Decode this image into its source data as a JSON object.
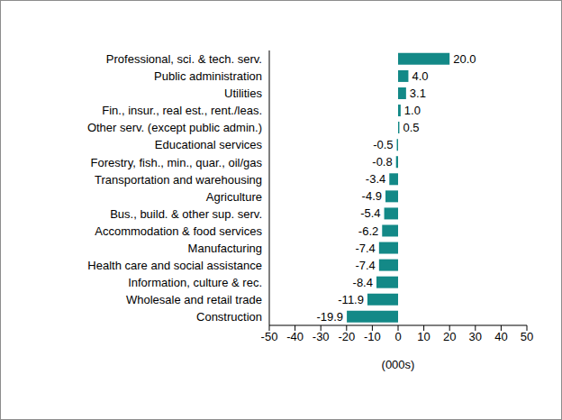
{
  "chart_data": {
    "type": "bar",
    "orientation": "horizontal",
    "categories": [
      "Professional, sci. & tech. serv.",
      "Public administration",
      "Utilities",
      "Fin., insur., real est., rent./leas.",
      "Other serv. (except public admin.)",
      "Educational services",
      "Forestry, fish., min., quar., oil/gas",
      "Transportation and warehousing",
      "Agriculture",
      "Bus., build. & other sup. serv.",
      "Accommodation & food services",
      "Manufacturing",
      "Health care and social assistance",
      "Information, culture & rec.",
      "Wholesale and retail trade",
      "Construction"
    ],
    "values": [
      20.0,
      4.0,
      3.1,
      1.0,
      0.5,
      -0.5,
      -0.8,
      -3.4,
      -4.9,
      -5.4,
      -6.2,
      -7.4,
      -7.4,
      -8.4,
      -11.9,
      -19.9
    ],
    "value_labels": [
      "20.0",
      "4.0",
      "3.1",
      "1.0",
      "0.5",
      "-0.5",
      "-0.8",
      "-3.4",
      "-4.9",
      "-5.4",
      "-6.2",
      "-7.4",
      "-7.4",
      "-8.4",
      "-11.9",
      "-19.9"
    ],
    "color": "#138987",
    "data_labels": true,
    "xlabel": "(000s)",
    "xlim": [
      -50,
      50
    ],
    "xticks": [
      -50,
      -40,
      -30,
      -20,
      -10,
      0,
      10,
      20,
      30,
      40,
      50
    ],
    "grid": false
  }
}
